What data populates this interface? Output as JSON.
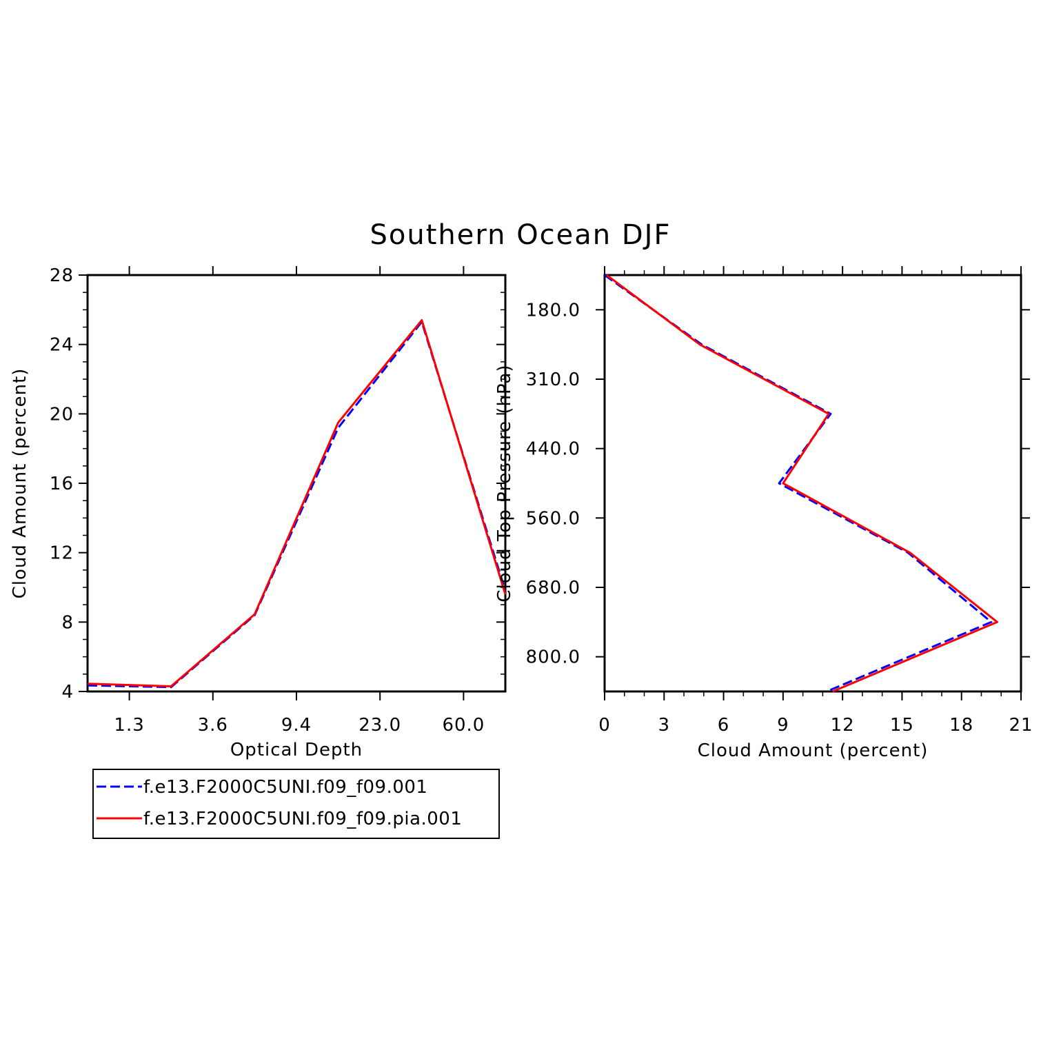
{
  "title": "Southern Ocean DJF",
  "legend": [
    {
      "label": "f.e13.F2000C5UNI.f09_f09.001",
      "color": "#0000ff",
      "dash": "dashed"
    },
    {
      "label": "f.e13.F2000C5UNI.f09_f09.pia.001",
      "color": "#ff0000",
      "dash": "solid"
    }
  ],
  "chart_data": [
    {
      "type": "line",
      "title": "",
      "xlabel": "Optical Depth",
      "ylabel": "Cloud Amount (percent)",
      "x_tick_labels": [
        "1.3",
        "3.6",
        "9.4",
        "23.0",
        "60.0"
      ],
      "y_ticks": [
        4,
        8,
        12,
        16,
        20,
        24,
        28
      ],
      "y_tick_labels": [
        "4",
        "8",
        "12",
        "16",
        "20",
        "24",
        "28"
      ],
      "ylim": [
        4,
        28
      ],
      "x": [
        0,
        1,
        2,
        3,
        4,
        5
      ],
      "series": [
        {
          "name": "f.e13.F2000C5UNI.f09_f09.001",
          "color": "#0000ff",
          "dash": "dashed",
          "values": [
            4.35,
            4.25,
            8.4,
            19.2,
            25.3,
            9.8
          ]
        },
        {
          "name": "f.e13.F2000C5UNI.f09_f09.pia.001",
          "color": "#ff0000",
          "dash": "solid",
          "values": [
            4.45,
            4.3,
            8.45,
            19.5,
            25.4,
            9.6
          ]
        }
      ]
    },
    {
      "type": "line",
      "title": "",
      "xlabel": "Cloud Amount (percent)",
      "ylabel": "Cloud Top Pressure (hPa)",
      "x_ticks": [
        0,
        3,
        6,
        9,
        12,
        15,
        18,
        21
      ],
      "x_tick_labels": [
        "0",
        "3",
        "6",
        "9",
        "12",
        "15",
        "18",
        "21"
      ],
      "xlim": [
        0,
        21
      ],
      "y_tick_labels": [
        "180.0",
        "310.0",
        "440.0",
        "560.0",
        "680.0",
        "800.0"
      ],
      "y": [
        0,
        1,
        2,
        3,
        4,
        5,
        6
      ],
      "series": [
        {
          "name": "f.e13.F2000C5UNI.f09_f09.001",
          "color": "#0000ff",
          "dash": "dashed",
          "values": [
            0.0,
            4.9,
            11.4,
            8.8,
            15.3,
            19.5,
            11.2
          ]
        },
        {
          "name": "f.e13.F2000C5UNI.f09_f09.pia.001",
          "color": "#ff0000",
          "dash": "solid",
          "values": [
            0.1,
            4.8,
            11.3,
            9.0,
            15.4,
            19.8,
            11.5
          ]
        }
      ]
    }
  ]
}
